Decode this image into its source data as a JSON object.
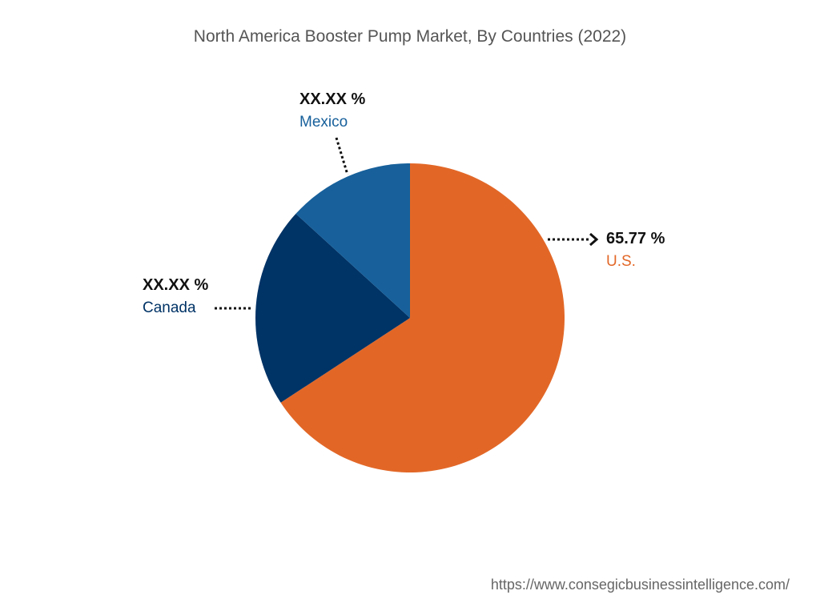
{
  "chart_data": {
    "type": "pie",
    "title": "North America Booster Pump Market, By Countries (2022)",
    "slices": [
      {
        "label": "U.S.",
        "display": "65.77  %",
        "value": 65.77,
        "color": "#E26727"
      },
      {
        "label": "Canada",
        "display": "XX.XX %",
        "value": 21.0,
        "color": "#003366"
      },
      {
        "label": "Mexico",
        "display": "XX.XX %",
        "value": 13.23,
        "color": "#17609B"
      }
    ],
    "start_angle_deg": 0,
    "direction": "clockwise"
  },
  "footer": {
    "url": "https://www.consegicbusinessintelligence.com/"
  }
}
